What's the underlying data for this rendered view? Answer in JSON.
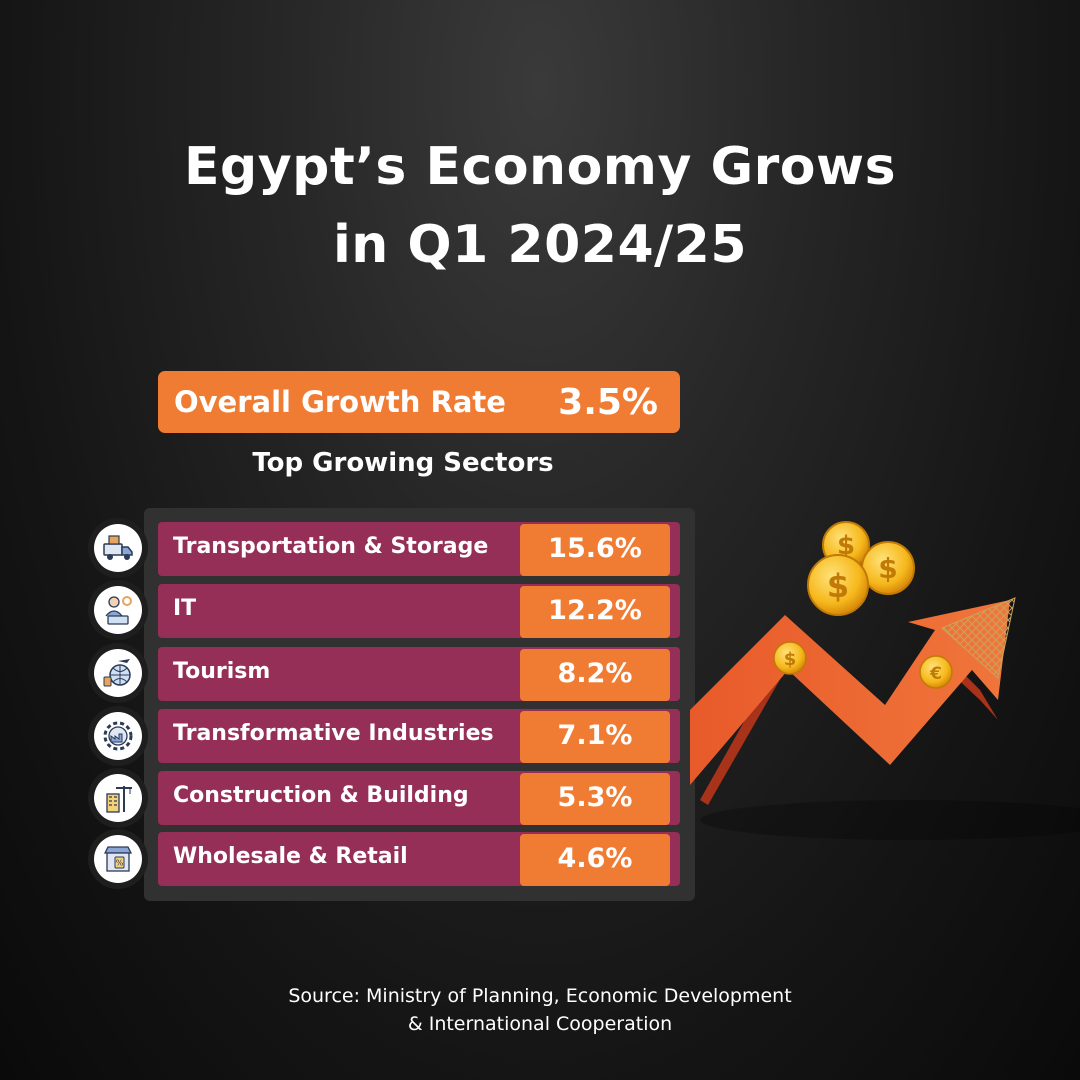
{
  "title": {
    "line1": "Egypt’s Economy Grows",
    "line2": "in Q1 2024/25"
  },
  "overall": {
    "label": "Overall Growth Rate",
    "value": "3.5%"
  },
  "sectors_heading": "Top Growing Sectors",
  "sectors": [
    {
      "label": "Transportation & Storage",
      "value": "15.6%",
      "icon": "delivery-truck-icon"
    },
    {
      "label": "IT",
      "value": "12.2%",
      "icon": "it-technician-icon"
    },
    {
      "label": "Tourism",
      "value": "8.2%",
      "icon": "travel-globe-icon"
    },
    {
      "label": "Transformative Industries",
      "value": "7.1%",
      "icon": "factory-gear-icon"
    },
    {
      "label": "Construction & Building",
      "value": "5.3%",
      "icon": "crane-building-icon"
    },
    {
      "label": "Wholesale & Retail",
      "value": "4.6%",
      "icon": "retail-store-icon"
    }
  ],
  "source": {
    "line1": "Source: Ministry of Planning, Economic Development",
    "line2": "& International Cooperation"
  },
  "colors": {
    "accent_orange": "#f07c33",
    "row_maroon": "#952f57",
    "panel": "#313131"
  }
}
